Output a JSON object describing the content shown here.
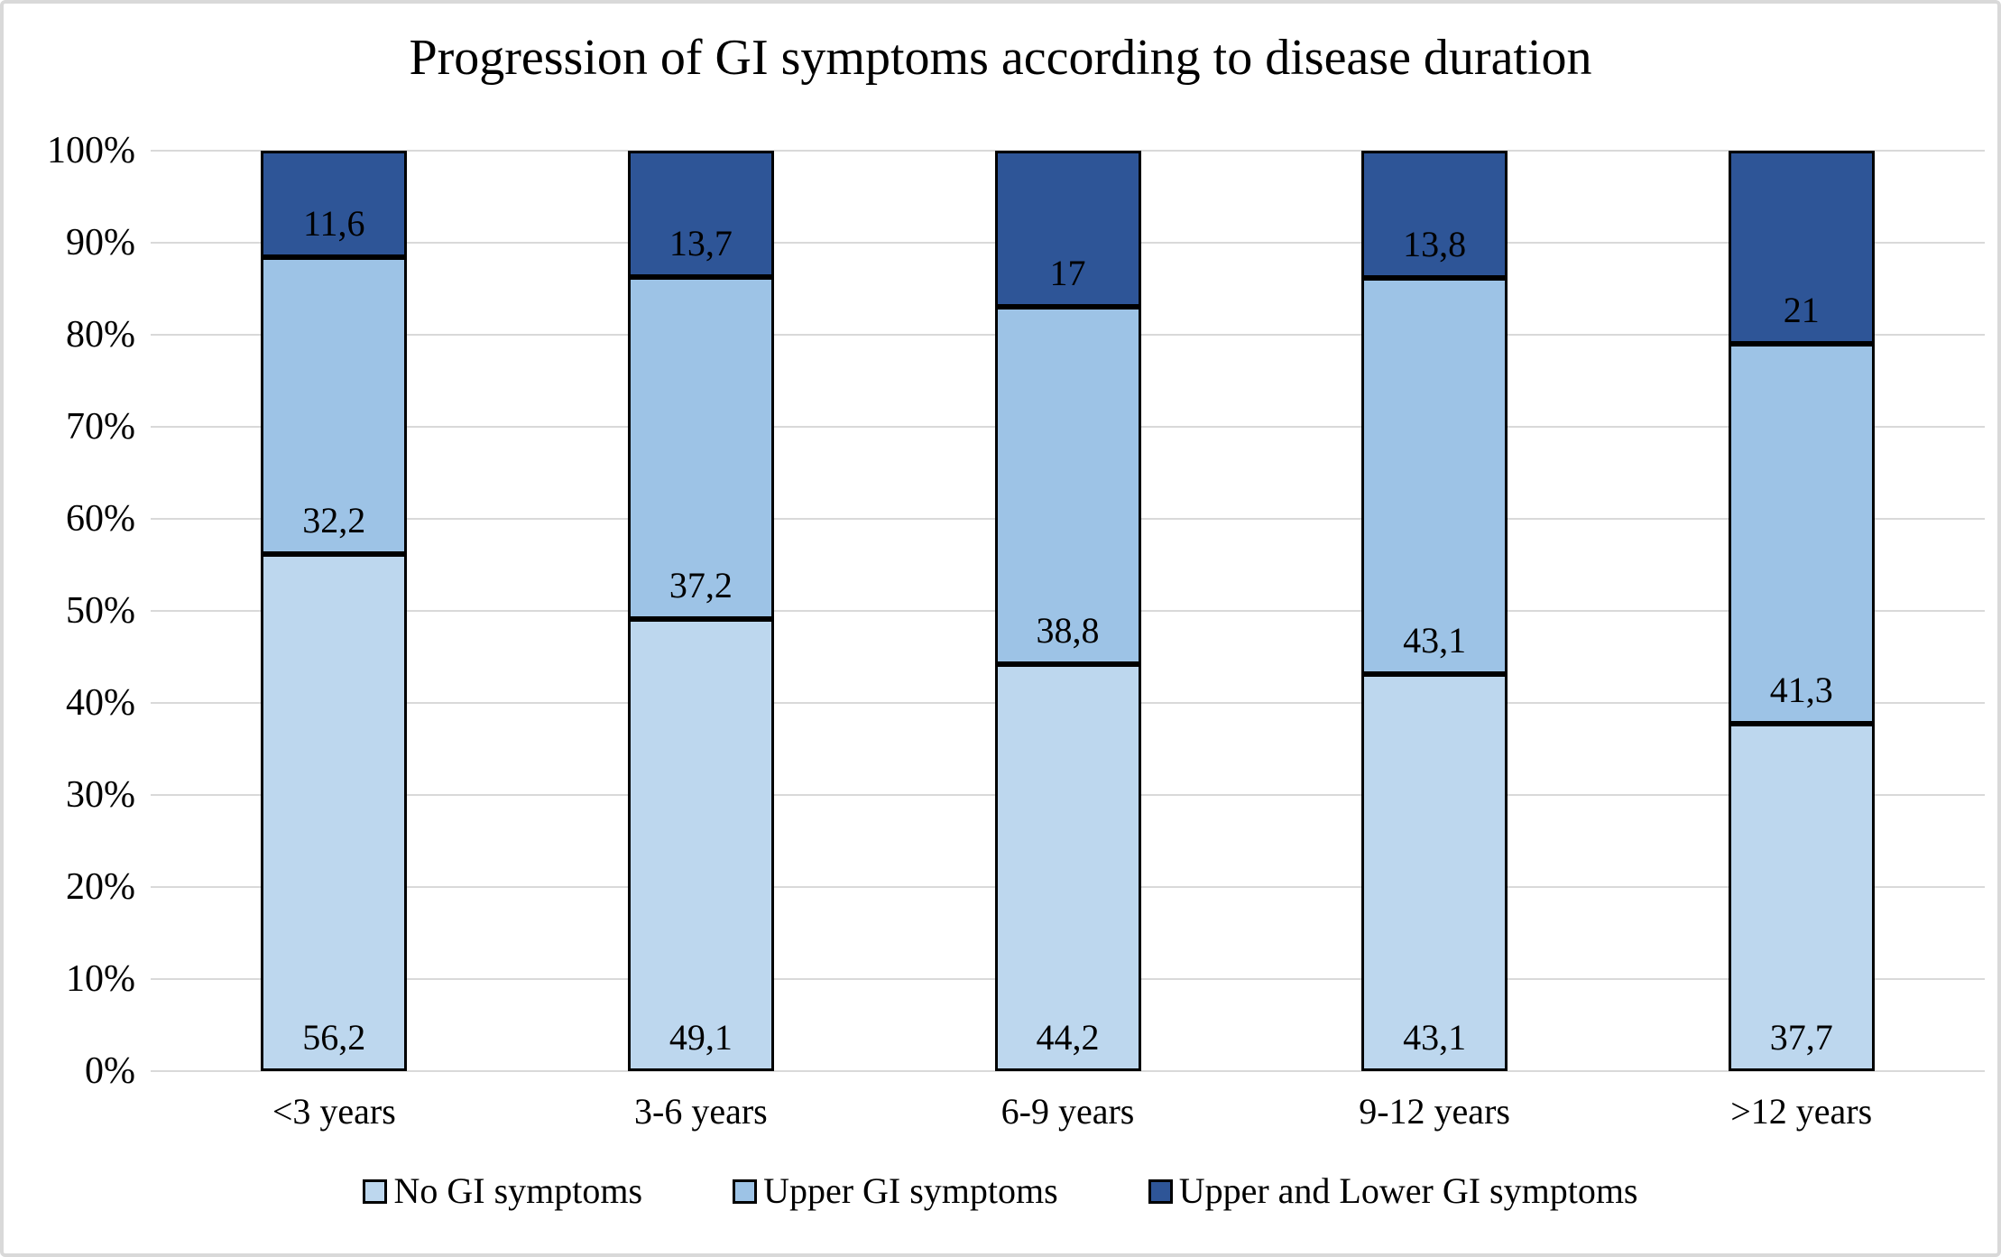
{
  "chart_data": {
    "type": "bar",
    "stacked": true,
    "percent_stacked": true,
    "title": "Progression of GI symptoms according to disease duration",
    "categories": [
      "<3 years",
      "3-6 years",
      "6-9 years",
      "9-12 years",
      ">12 years"
    ],
    "series": [
      {
        "name": "No GI symptoms",
        "color": "#BDD7EE",
        "values": [
          56.2,
          49.1,
          44.2,
          43.1,
          37.7
        ],
        "labels": [
          "56,2",
          "49,1",
          "44,2",
          "43,1",
          "37,7"
        ]
      },
      {
        "name": "Upper GI symptoms",
        "color": "#9DC3E6",
        "values": [
          32.2,
          37.2,
          38.8,
          43.1,
          41.3
        ],
        "labels": [
          "32,2",
          "37,2",
          "38,8",
          "43,1",
          "41,3"
        ]
      },
      {
        "name": "Upper and Lower GI symptoms",
        "color": "#2E5597",
        "values": [
          11.6,
          13.7,
          17,
          13.8,
          21
        ],
        "labels": [
          "11,6",
          "13,7",
          "17",
          "13,8",
          "21"
        ]
      }
    ],
    "y_axis": {
      "min": 0,
      "max": 100,
      "step": 10,
      "tick_labels": [
        "0%",
        "10%",
        "20%",
        "30%",
        "40%",
        "50%",
        "60%",
        "70%",
        "80%",
        "90%",
        "100%"
      ]
    },
    "xlabel": "",
    "ylabel": "",
    "grid": true,
    "legend_position": "bottom",
    "colors": {
      "gridline": "#D9D9D9",
      "bar_border": "#000000",
      "frame_border": "#D9D9D9",
      "background": "#FFFFFF",
      "text": "#000000"
    }
  }
}
